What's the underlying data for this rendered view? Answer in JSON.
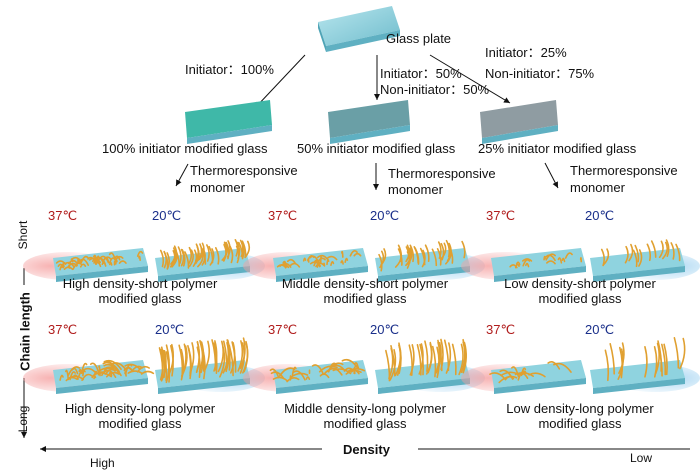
{
  "top": {
    "glass_plate": "Glass plate",
    "branch_left": "Initiator：100%",
    "branch_mid_1": "Initiator：50%",
    "branch_mid_2": "Non-initiator：50%",
    "branch_right_1": "Initiator：25%",
    "branch_right_2": "Non-initiator：75%"
  },
  "modified": {
    "left": "100% initiator modified glass",
    "mid": "50% initiator modified glass",
    "right": "25% initiator modified glass"
  },
  "monomer": {
    "line1": "Thermoresponsive",
    "line2": "monomer"
  },
  "temps": {
    "warm": "37℃",
    "cool": "20℃"
  },
  "labels": {
    "hs_1": "High density-short polymer",
    "hs_2": "modified glass",
    "ms_1": "Middle density-short polymer",
    "ms_2": "modified glass",
    "ls_1": "Low density-short polymer",
    "ls_2": "modified glass",
    "hl_1": "High density-long polymer",
    "hl_2": "modified glass",
    "ml_1": "Middle density-long polymer",
    "ml_2": "modified glass",
    "ll_1": "Low density-long polymer",
    "ll_2": "modified glass"
  },
  "axes": {
    "y_title": "Chain length",
    "y_top": "Short",
    "y_bottom": "Long",
    "x_title": "Density",
    "x_left": "High",
    "x_right": "Low"
  },
  "colors": {
    "glass": "#7ec8d6",
    "glass_dark": "#4fa4b6",
    "initiator": "#3fb8a8",
    "non_initiator": "#c87a8a",
    "polymer": "#e0a030",
    "warm": "#b01c1c",
    "cool": "#1a2f8a"
  }
}
